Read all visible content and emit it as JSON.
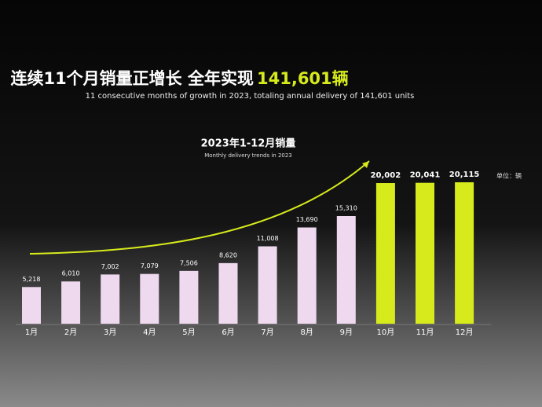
{
  "chart_data": {
    "type": "bar",
    "title": "连续11个月销量正增长 全年实现",
    "title_highlight": "141,601辆",
    "subtitle": "11 consecutive months of growth in 2023, totaling annual delivery of 141,601 units",
    "chart_title": "2023年1-12月销量",
    "chart_subtitle": "Monthly delivery trends in 2023",
    "unit": "单位：辆",
    "categories": [
      "1月",
      "2月",
      "3月",
      "4月",
      "5月",
      "6月",
      "7月",
      "8月",
      "9月",
      "10月",
      "11月",
      "12月"
    ],
    "values": [
      5218,
      6010,
      7002,
      7079,
      7506,
      8620,
      11008,
      13690,
      15310,
      20002,
      20041,
      20115
    ],
    "value_labels": [
      "5,218",
      "6,010",
      "7,002",
      "7,079",
      "7,506",
      "8,620",
      "11,008",
      "13,690",
      "15,310",
      "20,002",
      "20,041",
      "20,115"
    ],
    "colors": [
      "#eed9ee",
      "#eed9ee",
      "#eed9ee",
      "#eed9ee",
      "#eed9ee",
      "#eed9ee",
      "#eed9ee",
      "#eed9ee",
      "#eed9ee",
      "#d6ea1c",
      "#d6ea1c",
      "#d6ea1c"
    ]
  }
}
